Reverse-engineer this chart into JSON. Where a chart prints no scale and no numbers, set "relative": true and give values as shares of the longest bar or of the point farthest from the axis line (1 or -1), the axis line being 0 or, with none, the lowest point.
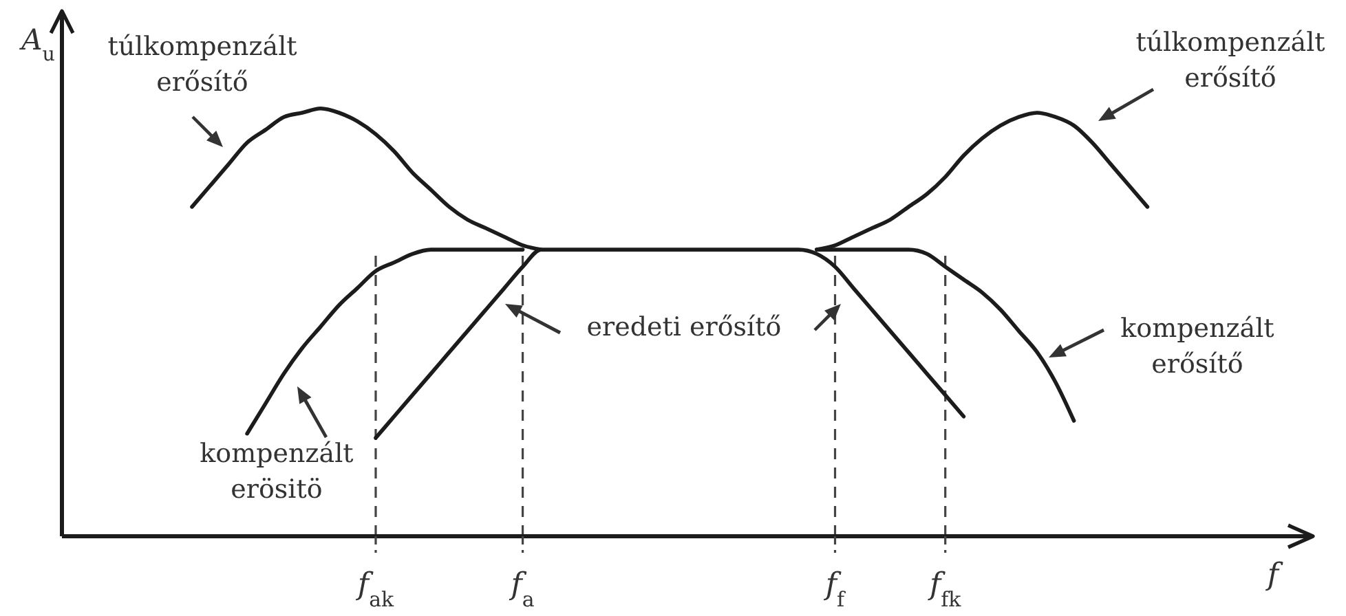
{
  "chart_data": {
    "type": "line",
    "relative": true,
    "xlabel": "f",
    "ylabel": "A$_{u}$",
    "tick_labels": "x",
    "marker": "none",
    "line_style": "solid",
    "categories": [
      null,
      null,
      null,
      null,
      null,
      null,
      null,
      null,
      null,
      null,
      "f$_{ak}$",
      null,
      null,
      null,
      null,
      null,
      null,
      null,
      "f$_{a}$",
      null,
      null,
      null,
      null,
      null,
      null,
      null,
      null,
      null,
      null,
      null,
      null,
      null,
      null,
      null,
      null,
      "f$_{f}$",
      null,
      null,
      null,
      null,
      null,
      "f$_{fk}$",
      null,
      null,
      null,
      null,
      null,
      null,
      null,
      null,
      null,
      null,
      null
    ],
    "series": [
      {
        "name": "túlkompenzált erősítő",
        "color": "#1c1c1c",
        "values": [
          0.77,
          0.82,
          0.87,
          0.92,
          0.95,
          0.98,
          0.99,
          1,
          0.99,
          0.97,
          0.94,
          0.9,
          0.85,
          0.81,
          0.77,
          0.74,
          0.72,
          0.7,
          0.68,
          0.67,
          null,
          null,
          null,
          null,
          null,
          null,
          null,
          null,
          null,
          null,
          null,
          null,
          null,
          null,
          null,
          null,
          null,
          null,
          null,
          null,
          null,
          null,
          null,
          null,
          null,
          null,
          null,
          null,
          null,
          null,
          null,
          null,
          null
        ]
      },
      {
        "name": "túlkompenzált erősítő",
        "color": "#1c1c1c",
        "values": [
          null,
          null,
          null,
          null,
          null,
          null,
          null,
          null,
          null,
          null,
          null,
          null,
          null,
          null,
          null,
          null,
          null,
          null,
          null,
          null,
          null,
          null,
          null,
          null,
          null,
          null,
          null,
          null,
          null,
          null,
          null,
          null,
          null,
          null,
          0.67,
          0.68,
          0.7,
          0.72,
          0.74,
          0.77,
          0.8,
          0.84,
          0.89,
          0.93,
          0.96,
          0.98,
          0.99,
          0.98,
          0.96,
          0.92,
          0.87,
          0.82,
          0.77
        ]
      },
      {
        "name": "kompenzált erösitö",
        "color": "#1c1c1c",
        "values": [
          null,
          null,
          null,
          0.24,
          0.31,
          0.38,
          0.44,
          0.49,
          0.54,
          0.58,
          0.62,
          0.64,
          0.66,
          0.67,
          0.67,
          0.67,
          0.67,
          0.67,
          0.67,
          null,
          null,
          null,
          null,
          null,
          null,
          null,
          null,
          null,
          null,
          null,
          null,
          null,
          null,
          null,
          null,
          null,
          null,
          null,
          null,
          null,
          null,
          null,
          null,
          null,
          null,
          null,
          null,
          null,
          null,
          null,
          null,
          null,
          null
        ]
      },
      {
        "name": "kompenzált erősítő",
        "color": "#1c1c1c",
        "values": [
          null,
          null,
          null,
          null,
          null,
          null,
          null,
          null,
          null,
          null,
          null,
          null,
          null,
          null,
          null,
          null,
          null,
          null,
          null,
          null,
          null,
          null,
          null,
          null,
          null,
          null,
          null,
          null,
          null,
          null,
          null,
          null,
          null,
          null,
          0.67,
          0.67,
          0.67,
          0.67,
          0.67,
          0.67,
          0.66,
          0.63,
          0.6,
          0.57,
          0.53,
          0.48,
          0.43,
          0.36,
          0.27,
          null,
          null,
          null,
          null
        ]
      },
      {
        "name": "eredeti erősítő",
        "color": "#1c1c1c",
        "values": [
          null,
          null,
          null,
          null,
          null,
          null,
          null,
          null,
          null,
          null,
          0.23,
          0.28,
          0.33,
          0.38,
          0.43,
          0.48,
          0.53,
          0.58,
          0.63,
          0.67,
          0.67,
          0.67,
          0.67,
          0.67,
          0.67,
          0.67,
          0.67,
          0.67,
          0.67,
          0.67,
          0.67,
          0.67,
          0.67,
          0.67,
          0.66,
          0.63,
          0.58,
          0.53,
          0.48,
          0.43,
          0.38,
          0.33,
          0.28,
          null,
          null,
          null,
          null,
          null,
          null,
          null,
          null,
          null,
          null
        ]
      }
    ],
    "ref_lines": [
      {
        "axis": "x",
        "value": "f$_{ak}$",
        "line_style": "dashed",
        "color": "#444444"
      },
      {
        "axis": "x",
        "value": "f$_{a}$",
        "line_style": "dashed",
        "color": "#444444"
      },
      {
        "axis": "x",
        "value": "f$_{f}$",
        "line_style": "dashed",
        "color": "#444444"
      },
      {
        "axis": "x",
        "value": "f$_{fk}$",
        "line_style": "dashed",
        "color": "#444444"
      }
    ]
  }
}
